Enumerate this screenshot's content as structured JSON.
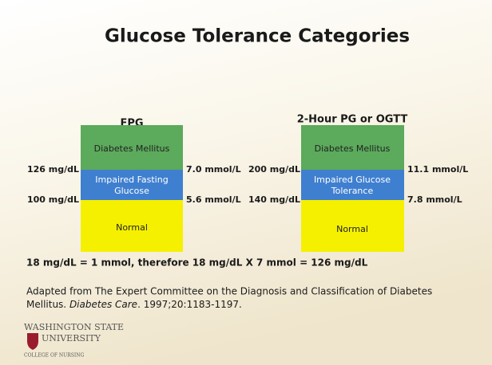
{
  "title": "Glucose Tolerance Categories",
  "columns": [
    {
      "heading": "FPG",
      "zones": [
        "Diabetes Mellitus",
        [
          "Impaired Fasting",
          "Glucose"
        ],
        "Normal"
      ],
      "left_labels": [
        "126 mg/dL",
        "100 mg/dL"
      ],
      "right_labels": [
        "7.0 mmol/L",
        "5.6 mmol/L"
      ]
    },
    {
      "heading": "2-Hour PG or OGTT",
      "zones": [
        "Diabetes Mellitus",
        [
          "Impaired Glucose",
          "Tolerance"
        ],
        "Normal"
      ],
      "left_labels": [
        "200 mg/dL",
        "140 mg/dL"
      ],
      "right_labels": [
        "11.1 mmol/L",
        "7.8 mmol/L"
      ]
    }
  ],
  "conversion": "18 mg/dL = 1 mmol, therefore 18 mg/dL X 7 mmol = 126 mg/dL",
  "citation": {
    "line1": "Adapted from The Expert Committee on the Diagnosis and Classification of Diabetes",
    "line2_before": "Mellitus. ",
    "journal": "Diabetes Care",
    "line2_after": ". 1997;20:1183-1197."
  },
  "logo": {
    "line1": "WASHINGTON STATE",
    "line2": "UNIVERSITY",
    "line3": "COLLEGE OF NURSING"
  }
}
